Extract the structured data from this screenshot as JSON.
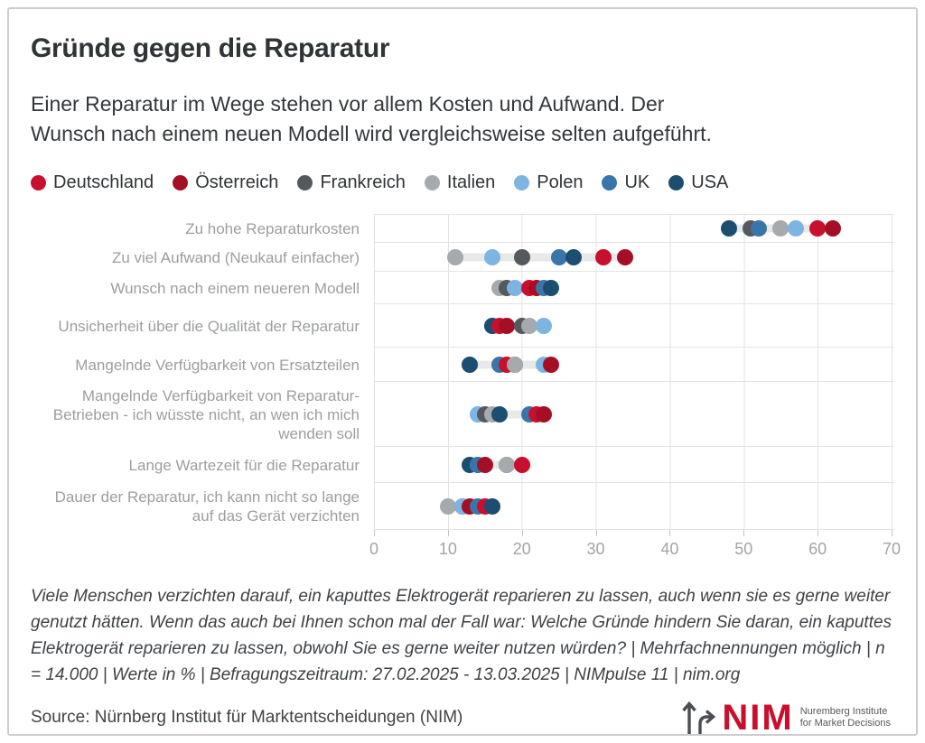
{
  "title": "Gründe gegen die Reparatur",
  "subtitle": "Einer Reparatur im Wege stehen vor allem Kosten und Aufwand. Der Wunsch nach einem neuen Modell wird vergleichsweise selten aufgeführt.",
  "chart_data": {
    "type": "scatter",
    "orientation": "horizontal-dot-plot",
    "unit": "%",
    "xlim": [
      0,
      70
    ],
    "xticks": [
      0,
      10,
      20,
      30,
      40,
      50,
      60,
      70
    ],
    "grid": true,
    "legend_position": "top",
    "categories": [
      "Zu hohe Reparaturkosten",
      "Zu viel Aufwand (Neukauf einfacher)",
      "Wunsch nach einem neueren Modell",
      "Unsicherheit über die Qualität der Reparatur",
      "Mangelnde Verfügbarkeit von Ersatzteilen",
      "Mangelnde Verfügbarkeit von Reparatur-Betrieben - ich wüsste nicht, an wen ich mich wenden soll",
      "Lange Wartezeit für die Reparatur",
      "Dauer der Reparatur, ich kann nicht so lange auf das Gerät verzichten"
    ],
    "series": [
      {
        "name": "Deutschland",
        "color": "#C8102E",
        "values": [
          60,
          31,
          21,
          17,
          18,
          22,
          20,
          15
        ]
      },
      {
        "name": "Österreich",
        "color": "#A50F26",
        "values": [
          62,
          34,
          22,
          18,
          24,
          23,
          15,
          13
        ]
      },
      {
        "name": "Frankreich",
        "color": "#55595D",
        "values": [
          51,
          20,
          18,
          20,
          19,
          15,
          18,
          12
        ]
      },
      {
        "name": "Italien",
        "color": "#A7AAAC",
        "values": [
          55,
          11,
          17,
          21,
          19,
          16,
          18,
          10
        ]
      },
      {
        "name": "Polen",
        "color": "#7EB4E2",
        "values": [
          57,
          16,
          19,
          23,
          23,
          14,
          14,
          12
        ]
      },
      {
        "name": "UK",
        "color": "#3A75A9",
        "values": [
          52,
          25,
          23,
          16,
          17,
          21,
          14,
          14
        ]
      },
      {
        "name": "USA",
        "color": "#1B4E71",
        "values": [
          48,
          27,
          24,
          16,
          13,
          17,
          13,
          16
        ]
      }
    ]
  },
  "footnote": "Viele Menschen verzichten darauf, ein kaputtes Elektrogerät reparieren zu lassen, auch wenn sie es gerne weiter genutzt hätten. Wenn das auch bei Ihnen schon mal der Fall war: Welche Gründe hindern Sie daran, ein kaputtes Elektrogerät reparieren zu lassen, obwohl Sie es gerne weiter nutzen würden? | Mehrfachnennungen möglich | n = 14.000 | Werte in % | Befragungszeitraum: 27.02.2025 - 13.03.2025 | NIMpulse 11 | nim.org",
  "source": "Source: Nürnberg Institut für Marktentscheidungen (NIM)",
  "logo": {
    "name": "NIM",
    "tagline1": "Nuremberg Institute",
    "tagline2": "for Market Decisions"
  }
}
